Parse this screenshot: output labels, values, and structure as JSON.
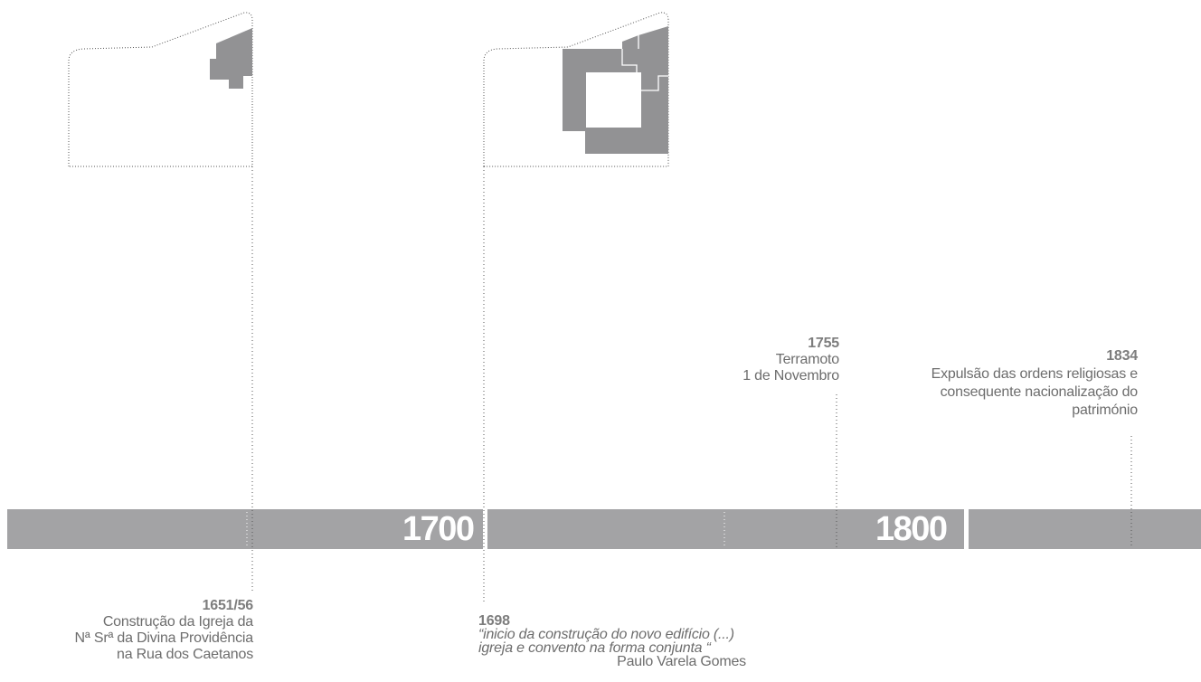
{
  "colors": {
    "band": "#a3a3a5",
    "plan_fill": "#929294",
    "text": "#6d6d6d",
    "dotted": "#555555"
  },
  "timeline": {
    "centuries": [
      "1700",
      "1800"
    ]
  },
  "events": [
    {
      "year": "1651/56",
      "lines": [
        "Construção da Igreja da",
        "Nª Srª da Divina Providência",
        "na Rua dos Caetanos"
      ]
    },
    {
      "year": "1698",
      "lines": [
        "“inicio da construção do novo edifício (...)",
        "igreja e convento na forma conjunta “"
      ],
      "author": "Paulo Varela Gomes"
    },
    {
      "year": "1755",
      "lines": [
        "Terramoto",
        "1 de Novembro"
      ]
    },
    {
      "year": "1834",
      "lines": [
        "Expulsão das ordens religiosas e",
        "consequente nacionalização do",
        "património"
      ]
    }
  ]
}
